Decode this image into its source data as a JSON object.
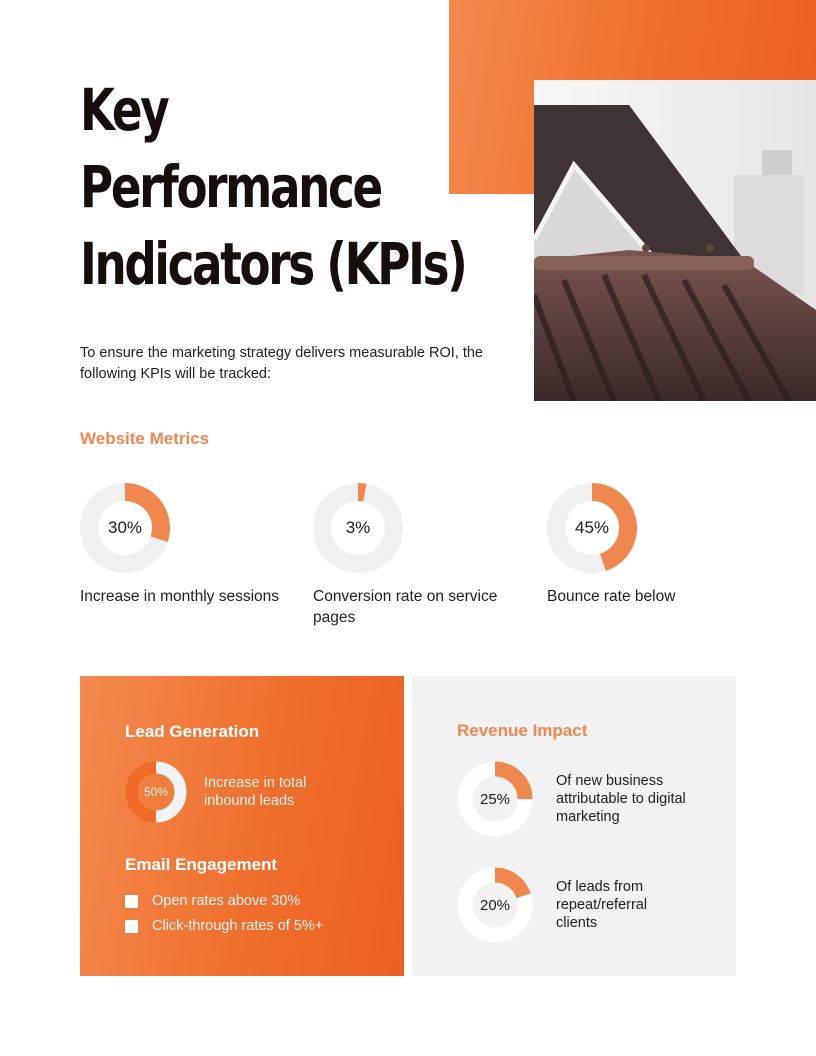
{
  "header": {
    "title_lines": [
      "Key",
      "Performance",
      "Indicators (KPIs)"
    ],
    "intro": "To ensure the marketing strategy delivers measurable ROI, the following KPIs will be tracked:"
  },
  "image": {
    "subject": "tiled-roof-photo"
  },
  "colors": {
    "accent": "#f0874e",
    "accent_dark": "#ec5f1f",
    "ring_bg": "#f0f0f0",
    "panel_gray": "#f2f2f2",
    "title": "#160e0b"
  },
  "website_metrics": {
    "heading": "Website Metrics",
    "items": [
      {
        "value": 30,
        "label": "30%",
        "caption": "Increase in monthly sessions"
      },
      {
        "value": 3,
        "label": "3%",
        "caption": "Conversion rate on service pages"
      },
      {
        "value": 45,
        "label": "45%",
        "caption": "Bounce rate below"
      }
    ]
  },
  "lead_generation": {
    "heading": "Lead Generation",
    "value": 50,
    "label": "50%",
    "caption": "Increase in total inbound leads"
  },
  "email_engagement": {
    "heading": "Email Engagement",
    "items": [
      "Open rates above 30%",
      "Click-through rates of 5%+"
    ]
  },
  "revenue_impact": {
    "heading": "Revenue Impact",
    "items": [
      {
        "value": 25,
        "label": "25%",
        "caption": "Of new business attributable to digital marketing"
      },
      {
        "value": 20,
        "label": "20%",
        "caption": "Of leads from repeat/referral clients"
      }
    ]
  }
}
